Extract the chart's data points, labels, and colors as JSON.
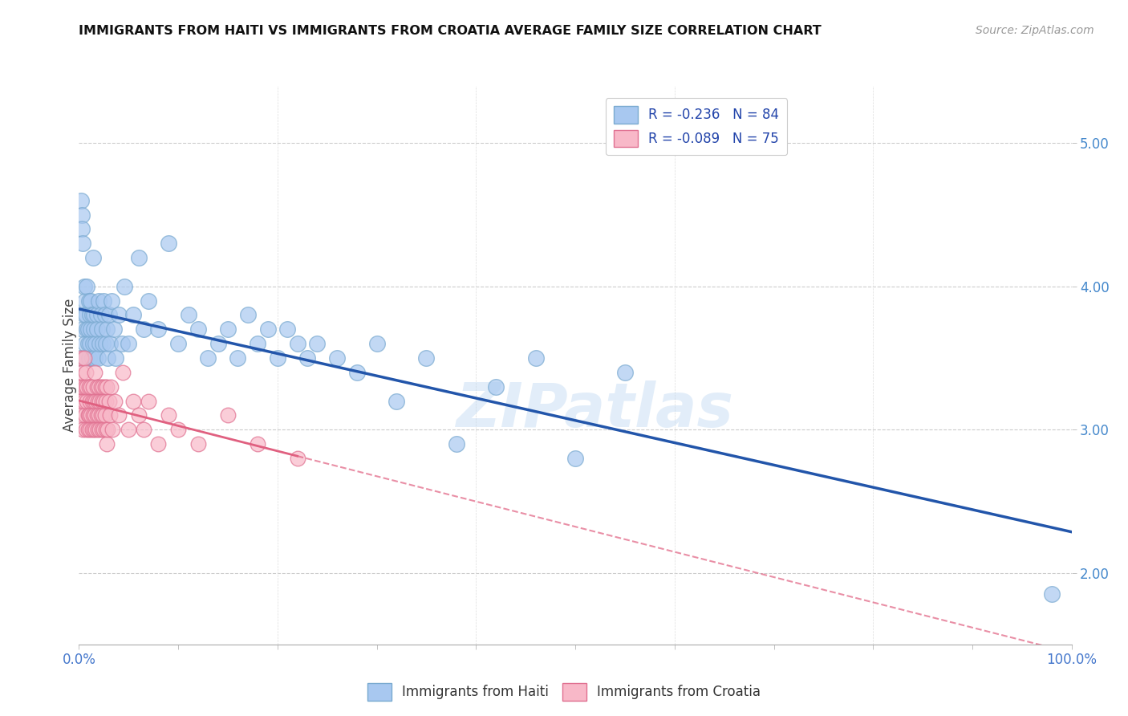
{
  "title": "IMMIGRANTS FROM HAITI VS IMMIGRANTS FROM CROATIA AVERAGE FAMILY SIZE CORRELATION CHART",
  "source": "Source: ZipAtlas.com",
  "ylabel": "Average Family Size",
  "yticks": [
    2.0,
    3.0,
    4.0,
    5.0
  ],
  "xlim": [
    0.0,
    1.0
  ],
  "ylim": [
    1.5,
    5.4
  ],
  "haiti_dot_color": "#a8c8f0",
  "haiti_edge_color": "#7aaad0",
  "croatia_dot_color": "#f8b8c8",
  "croatia_edge_color": "#e07090",
  "haiti_line_color": "#2255aa",
  "croatia_line_color": "#e06080",
  "haiti_R": -0.236,
  "haiti_N": 84,
  "croatia_R": -0.089,
  "croatia_N": 75,
  "legend_haiti_label": "R = -0.236   N = 84",
  "legend_croatia_label": "R = -0.089   N = 75",
  "watermark": "ZIPatlas",
  "haiti_x": [
    0.001,
    0.002,
    0.003,
    0.003,
    0.004,
    0.004,
    0.005,
    0.005,
    0.006,
    0.006,
    0.007,
    0.007,
    0.008,
    0.008,
    0.009,
    0.009,
    0.01,
    0.01,
    0.011,
    0.011,
    0.012,
    0.012,
    0.013,
    0.013,
    0.014,
    0.014,
    0.015,
    0.015,
    0.016,
    0.017,
    0.018,
    0.018,
    0.019,
    0.02,
    0.021,
    0.022,
    0.023,
    0.024,
    0.025,
    0.026,
    0.027,
    0.028,
    0.029,
    0.03,
    0.031,
    0.033,
    0.035,
    0.037,
    0.04,
    0.043,
    0.046,
    0.05,
    0.055,
    0.06,
    0.065,
    0.07,
    0.08,
    0.09,
    0.1,
    0.11,
    0.12,
    0.13,
    0.14,
    0.15,
    0.16,
    0.17,
    0.18,
    0.19,
    0.2,
    0.21,
    0.22,
    0.23,
    0.24,
    0.26,
    0.28,
    0.3,
    0.32,
    0.35,
    0.38,
    0.42,
    0.46,
    0.5,
    0.55,
    0.98
  ],
  "haiti_y": [
    3.5,
    4.6,
    4.5,
    4.4,
    3.7,
    4.3,
    3.8,
    4.0,
    3.6,
    3.9,
    3.5,
    3.8,
    3.7,
    4.0,
    3.6,
    3.7,
    3.9,
    3.5,
    3.8,
    3.6,
    3.7,
    3.9,
    3.5,
    3.8,
    3.6,
    4.2,
    3.7,
    3.8,
    3.5,
    3.6,
    3.8,
    3.7,
    3.5,
    3.9,
    3.6,
    3.8,
    3.7,
    3.6,
    3.9,
    3.8,
    3.6,
    3.7,
    3.5,
    3.8,
    3.6,
    3.9,
    3.7,
    3.5,
    3.8,
    3.6,
    4.0,
    3.6,
    3.8,
    4.2,
    3.7,
    3.9,
    3.7,
    4.3,
    3.6,
    3.8,
    3.7,
    3.5,
    3.6,
    3.7,
    3.5,
    3.8,
    3.6,
    3.7,
    3.5,
    3.7,
    3.6,
    3.5,
    3.6,
    3.5,
    3.4,
    3.6,
    3.2,
    3.5,
    2.9,
    3.3,
    3.5,
    2.8,
    3.4,
    1.85
  ],
  "croatia_x": [
    0.001,
    0.002,
    0.002,
    0.003,
    0.003,
    0.004,
    0.004,
    0.005,
    0.005,
    0.006,
    0.006,
    0.007,
    0.007,
    0.008,
    0.008,
    0.009,
    0.009,
    0.01,
    0.01,
    0.011,
    0.011,
    0.012,
    0.012,
    0.013,
    0.013,
    0.014,
    0.014,
    0.015,
    0.015,
    0.016,
    0.016,
    0.017,
    0.017,
    0.018,
    0.018,
    0.019,
    0.019,
    0.02,
    0.02,
    0.021,
    0.021,
    0.022,
    0.022,
    0.023,
    0.023,
    0.024,
    0.024,
    0.025,
    0.025,
    0.026,
    0.026,
    0.027,
    0.027,
    0.028,
    0.028,
    0.029,
    0.03,
    0.031,
    0.032,
    0.034,
    0.036,
    0.04,
    0.044,
    0.05,
    0.055,
    0.06,
    0.065,
    0.07,
    0.08,
    0.09,
    0.1,
    0.12,
    0.15,
    0.18,
    0.22
  ],
  "croatia_y": [
    3.3,
    3.5,
    3.2,
    3.1,
    3.4,
    3.3,
    3.0,
    3.2,
    3.5,
    3.1,
    3.3,
    3.0,
    3.4,
    3.2,
    3.3,
    3.1,
    3.0,
    3.3,
    3.1,
    3.2,
    3.0,
    3.3,
    3.1,
    3.2,
    3.0,
    3.3,
    3.1,
    3.2,
    3.0,
    3.4,
    3.1,
    3.2,
    3.0,
    3.3,
    3.1,
    3.2,
    3.0,
    3.3,
    3.1,
    3.2,
    3.0,
    3.3,
    3.1,
    3.2,
    3.0,
    3.3,
    3.1,
    3.2,
    3.0,
    3.3,
    3.1,
    3.2,
    3.0,
    3.3,
    2.9,
    3.0,
    3.2,
    3.1,
    3.3,
    3.0,
    3.2,
    3.1,
    3.4,
    3.0,
    3.2,
    3.1,
    3.0,
    3.2,
    2.9,
    3.1,
    3.0,
    2.9,
    3.1,
    2.9,
    2.8
  ]
}
